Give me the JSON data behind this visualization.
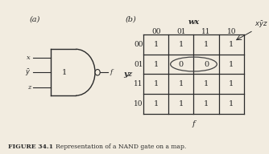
{
  "title_a": "(a)",
  "title_b": "(b)",
  "figure_caption_bold": "FIGURE 34.1",
  "figure_caption_normal": "   Representation of a NAND gate on a map.",
  "wx_label": "wx",
  "yz_label": "yz",
  "f_label": "f",
  "col_headers": [
    "00",
    "01",
    "11",
    "10"
  ],
  "row_headers": [
    "00",
    "01",
    "11",
    "10"
  ],
  "cell_values": [
    [
      "1",
      "1",
      "1",
      "1"
    ],
    [
      "1",
      "0",
      "0",
      "1"
    ],
    [
      "1",
      "1",
      "1",
      "1"
    ],
    [
      "1",
      "1",
      "1",
      "1"
    ]
  ],
  "bg_color": "#f2ece0",
  "grid_color": "#2a2a2a",
  "font_color": "#2a2a2a",
  "input_labels": [
    "x",
    "y",
    "z"
  ],
  "gate_label": "1",
  "output_label": "f",
  "annotation_label": "x$\\bar{y}$z"
}
